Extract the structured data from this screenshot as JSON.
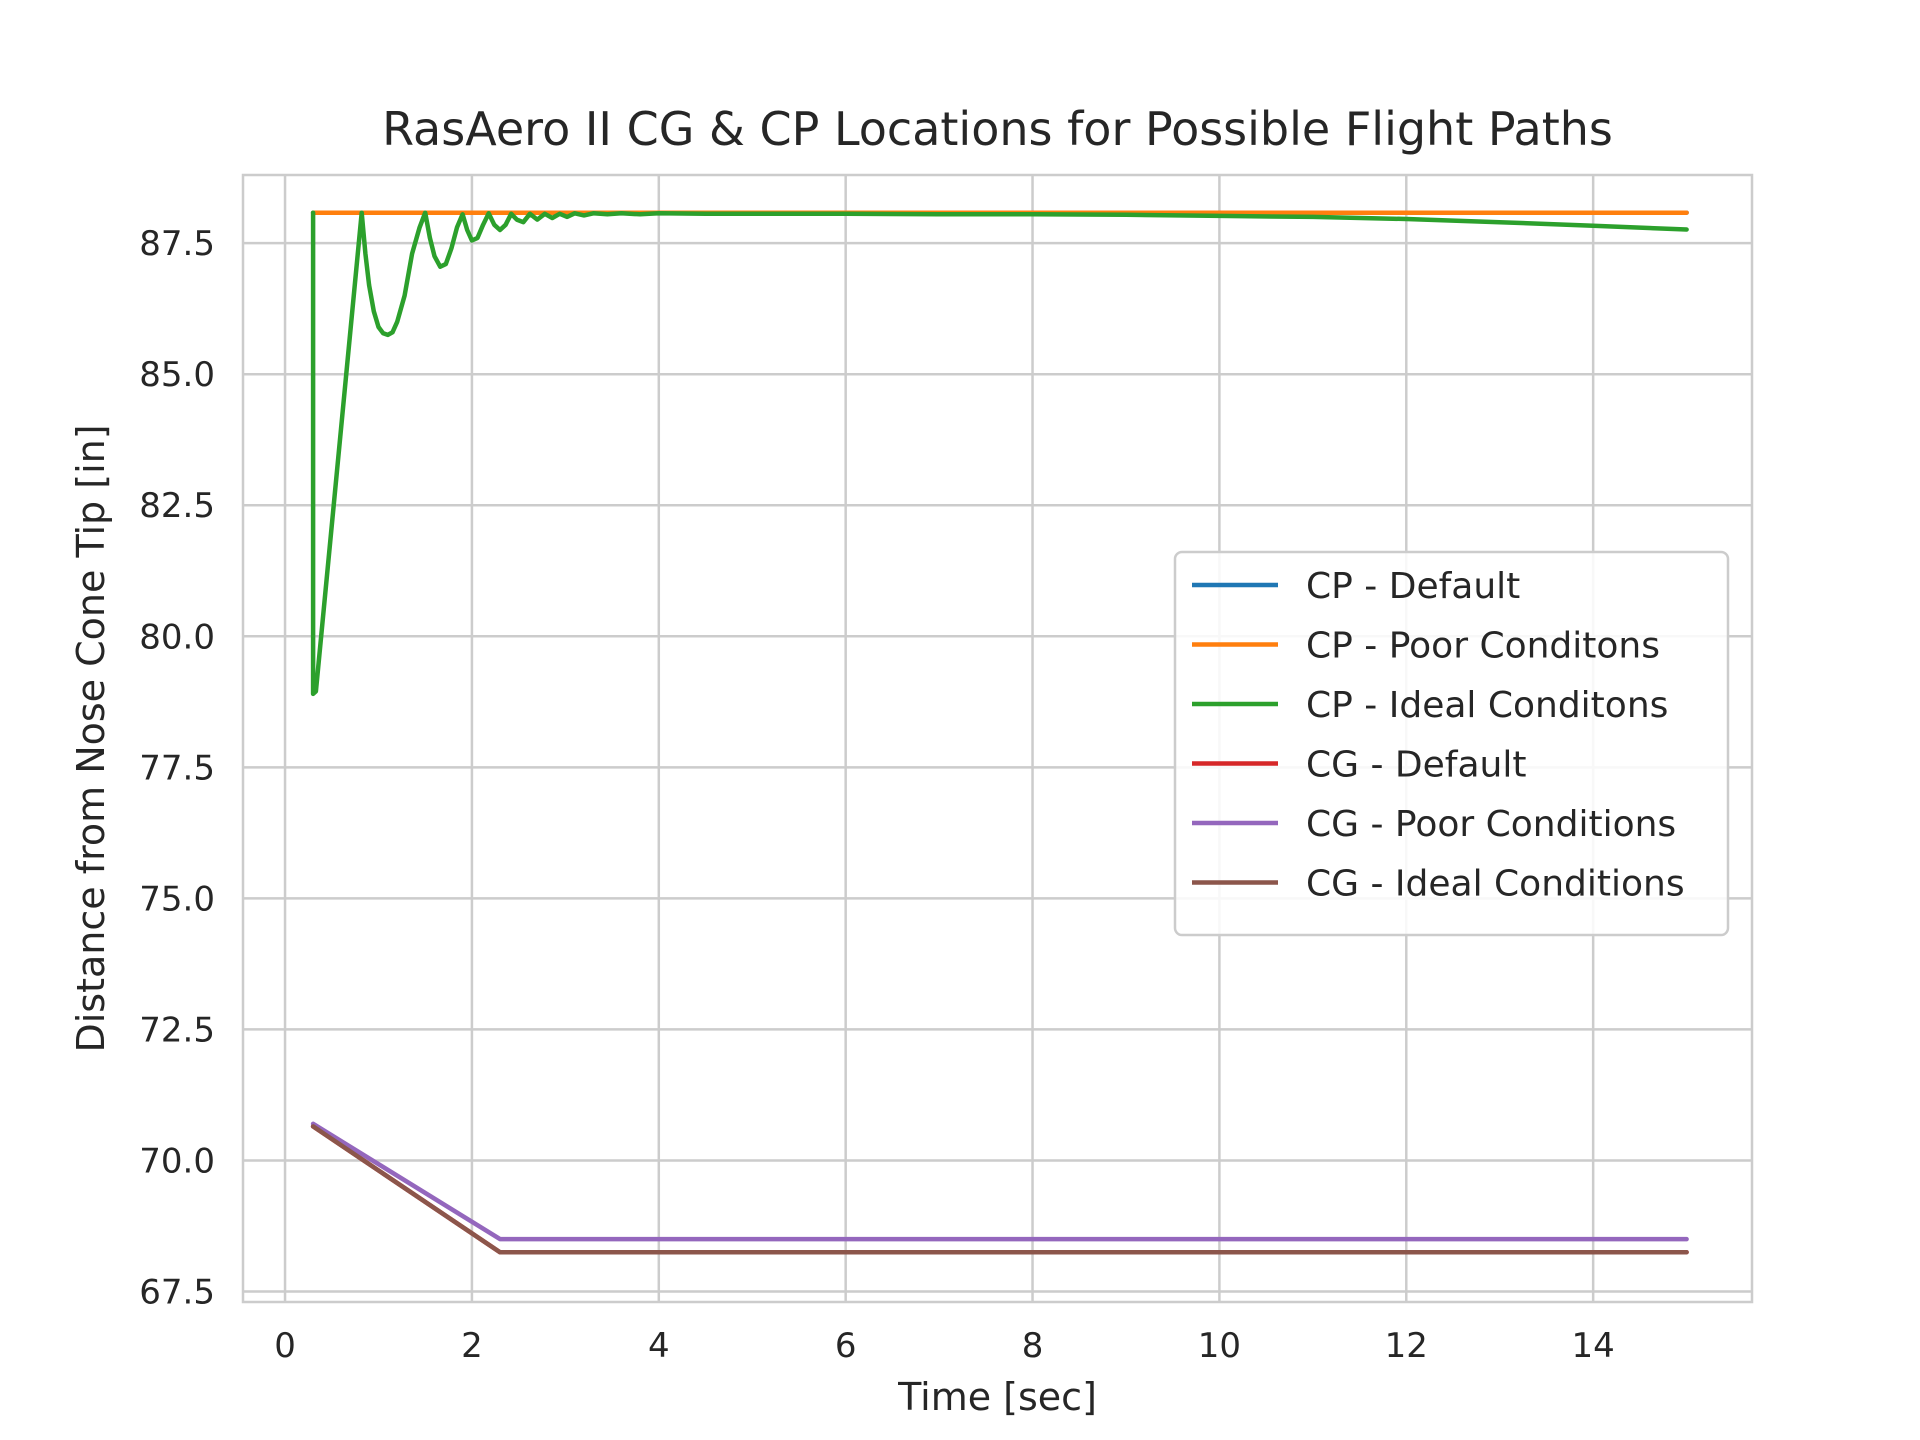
{
  "chart_data": {
    "type": "line",
    "title": "RasAero II CG & CP Locations for Possible Flight Paths",
    "xlabel": "Time [sec]",
    "ylabel": "Distance from Nose Cone Tip [in]",
    "xlim": [
      -0.45,
      15.7
    ],
    "ylim": [
      67.3,
      88.8
    ],
    "xticks": [
      0,
      2,
      4,
      6,
      8,
      10,
      12,
      14
    ],
    "xtick_labels": [
      "0",
      "2",
      "4",
      "6",
      "8",
      "10",
      "12",
      "14"
    ],
    "yticks": [
      67.5,
      70.0,
      72.5,
      75.0,
      77.5,
      80.0,
      82.5,
      85.0,
      87.5
    ],
    "ytick_labels": [
      "67.5",
      "70.0",
      "72.5",
      "75.0",
      "77.5",
      "80.0",
      "82.5",
      "85.0",
      "87.5"
    ],
    "grid": true,
    "legend_position": "center-right",
    "series": [
      {
        "name": "CP - Default",
        "color": "#1f77b4",
        "x": [
          0.3,
          15.0
        ],
        "y": [
          88.08,
          88.08
        ]
      },
      {
        "name": "CP - Poor Conditons",
        "color": "#ff7f0e",
        "x": [
          0.3,
          15.0
        ],
        "y": [
          88.08,
          88.08
        ]
      },
      {
        "name": "CP - Ideal Conditons",
        "color": "#2ca02c",
        "x": [
          0.3,
          0.3,
          0.33,
          0.82,
          0.86,
          0.9,
          0.95,
          1.0,
          1.05,
          1.1,
          1.15,
          1.2,
          1.28,
          1.36,
          1.44,
          1.5,
          1.55,
          1.6,
          1.66,
          1.72,
          1.78,
          1.84,
          1.9,
          1.95,
          2.0,
          2.06,
          2.12,
          2.18,
          2.24,
          2.3,
          2.36,
          2.42,
          2.48,
          2.55,
          2.62,
          2.7,
          2.78,
          2.86,
          2.94,
          3.02,
          3.1,
          3.2,
          3.3,
          3.45,
          3.6,
          3.8,
          4.0,
          4.5,
          5.0,
          6.0,
          7.0,
          8.0,
          9.0,
          10.0,
          11.0,
          12.0,
          13.0,
          14.0,
          15.0
        ],
        "y": [
          88.08,
          78.9,
          78.95,
          88.08,
          87.3,
          86.7,
          86.2,
          85.9,
          85.78,
          85.75,
          85.8,
          86.0,
          86.5,
          87.3,
          87.8,
          88.08,
          87.6,
          87.25,
          87.05,
          87.1,
          87.4,
          87.8,
          88.05,
          87.75,
          87.55,
          87.6,
          87.85,
          88.07,
          87.85,
          87.75,
          87.85,
          88.06,
          87.95,
          87.9,
          88.06,
          87.95,
          88.06,
          87.98,
          88.06,
          88.0,
          88.07,
          88.03,
          88.07,
          88.05,
          88.07,
          88.05,
          88.07,
          88.06,
          88.06,
          88.06,
          88.05,
          88.05,
          88.04,
          88.02,
          88.0,
          87.96,
          87.9,
          87.83,
          87.76
        ]
      },
      {
        "name": "CG - Default",
        "color": "#d62728",
        "x": [
          0.3,
          2.3,
          15.0
        ],
        "y": [
          70.65,
          68.25,
          68.25
        ]
      },
      {
        "name": "CG - Poor Conditions",
        "color": "#9467bd",
        "x": [
          0.3,
          2.3,
          15.0
        ],
        "y": [
          70.7,
          68.5,
          68.5
        ]
      },
      {
        "name": "CG - Ideal Conditions",
        "color": "#8c564b",
        "x": [
          0.3,
          2.3,
          15.0
        ],
        "y": [
          70.65,
          68.25,
          68.25
        ]
      }
    ]
  }
}
